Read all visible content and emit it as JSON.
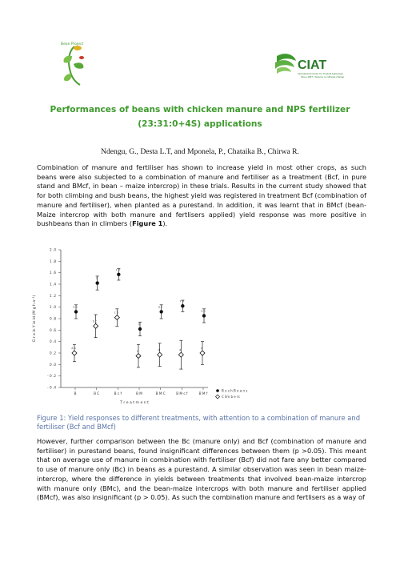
{
  "logos": {
    "left_alt": "Bean Project",
    "right_name": "CIAT",
    "right_sub1": "International Center for Tropical Agriculture",
    "right_sub2": "Since 1967 / Science to cultivate change"
  },
  "title_line1": "Performances of beans with chicken manure and NPS fertilizer",
  "title_line2": "(23:31:0+4S) applications",
  "authors": "Ndengu, G., Desta L.T, and Mponela, P., Chataika B., Chirwa R.",
  "para1": {
    "text": "Combination of manure and fertiliser has shown to increase yield in most other crops, as such beans were also subjected to a combination of manure and fertiliser as a treatment (Bcf, in pure stand and BMcf, in bean – maize intercrop) in these trials. Results in the current study showed that for both climbing and bush beans, the highest yield was registered in treatment Bcf (combination of manure and fertiliser), when planted as a purestand. In addition, it was learnt that in BMcf (bean- Maize intercrop with both manure and fertlisers applied) yield response was more positive in bushbeans than in climbers (",
    "fig_ref": "Figure 1",
    "end": ")."
  },
  "caption": "Figure 1: Yield responses to different treatments, with attention to a combination of manure and fertiliser (Bcf and BMcf)",
  "para2": "However, further comparison between the Bc (manure only) and Bcf (combination of manure and fertiliser) in purestand beans, found insignificant differences between them (p >0.05). This meant that on average use of manure in combination with fertiliser (Bcf) did not fare any better compared to use of manure only (Bc) in beans as a purestand. A similar observation was seen in bean maize-intercrop, where the difference in yields between treatments that involved bean-maize intercrop with manure only (BMc), and the bean-maize intercrops with both manure and fertiliser applied (BMcf), was also insignificant (p > 0.05).  As such the combination manure and fertlisers as a way of",
  "chart_data": {
    "type": "scatter",
    "title": "",
    "xlabel": "T r e a t m e n t",
    "ylabel": "G r a in  Y ie ld (M g h a⁻¹)",
    "categories": [
      "B",
      "B C",
      "B c f",
      "B M",
      "B M C",
      "B M c f",
      "B M f"
    ],
    "ylim": [
      -0.4,
      2.0
    ],
    "yticks": [
      "2 .0",
      "1 .8",
      "1 .6",
      "1 .4",
      "1 .2",
      "1 .0",
      "0 .8",
      "0 .6",
      "0 .4",
      "0 .2",
      "0 .0",
      "- 0 .2",
      "- 0 .4"
    ],
    "ytick_values": [
      2.0,
      1.8,
      1.6,
      1.4,
      1.2,
      1.0,
      0.8,
      0.6,
      0.4,
      0.2,
      0.0,
      -0.2,
      -0.4
    ],
    "series": [
      {
        "name": "B u s h  B e a n s",
        "marker": "filled-circle",
        "values": [
          0.92,
          1.42,
          1.57,
          0.62,
          0.92,
          1.02,
          0.85
        ],
        "err": [
          0.12,
          0.12,
          0.1,
          0.12,
          0.12,
          0.1,
          0.12
        ],
        "labels": [
          "a b",
          "c",
          "c d",
          "a",
          "a b",
          "c d",
          "a b"
        ]
      },
      {
        "name": "C lim  b e rs",
        "marker": "open-diamond",
        "values": [
          0.2,
          0.67,
          0.82,
          0.15,
          0.17,
          0.17,
          0.2
        ],
        "err": [
          0.15,
          0.2,
          0.15,
          0.2,
          0.2,
          0.25,
          0.2
        ],
        "labels": [
          "a b",
          "b c",
          "c d",
          "a",
          "a",
          "a",
          "a"
        ]
      }
    ]
  }
}
